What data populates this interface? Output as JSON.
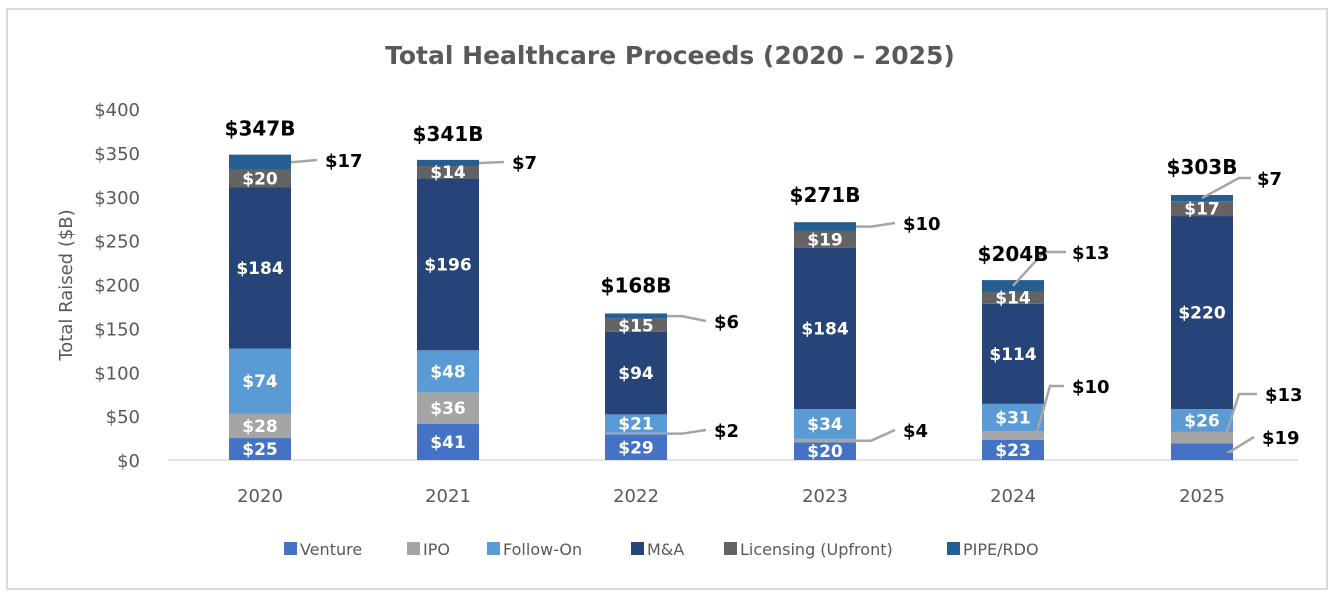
{
  "chart_data": {
    "type": "bar",
    "stacked": true,
    "title": "Total Healthcare Proceeds (2020 – 2025)",
    "xlabel": "",
    "ylabel": "Total Raised ($B)",
    "ylim": [
      0,
      400
    ],
    "yticks": [
      0,
      50,
      100,
      150,
      200,
      250,
      300,
      350,
      400
    ],
    "ytick_labels": [
      "$0",
      "$50",
      "$100",
      "$150",
      "$200",
      "$250",
      "$300",
      "$350",
      "$400"
    ],
    "grid": false,
    "legend_position": "bottom",
    "categories": [
      "2020",
      "2021",
      "2022",
      "2023",
      "2024",
      "2025"
    ],
    "series": [
      {
        "name": "Venture",
        "color": "#4472c4",
        "values": [
          25,
          41,
          29,
          20,
          23,
          19
        ]
      },
      {
        "name": "IPO",
        "color": "#a5a5a5",
        "values": [
          28,
          36,
          2,
          4,
          10,
          13
        ]
      },
      {
        "name": "Follow-On",
        "color": "#5b9bd5",
        "values": [
          74,
          48,
          21,
          34,
          31,
          26
        ]
      },
      {
        "name": "M&A",
        "color": "#264478",
        "values": [
          184,
          196,
          94,
          184,
          114,
          220
        ]
      },
      {
        "name": "Licensing (Upfront)",
        "color": "#636363",
        "values": [
          20,
          14,
          15,
          19,
          14,
          17
        ]
      },
      {
        "name": "PIPE/RDO",
        "color": "#255e91",
        "values": [
          17,
          7,
          6,
          10,
          13,
          7
        ]
      }
    ],
    "totals": [
      347,
      341,
      168,
      271,
      204,
      303
    ],
    "total_labels": [
      "$347B",
      "$341B",
      "$168B",
      "$271B",
      "$204B",
      "$303B"
    ],
    "value_prefix": "$",
    "callouts": [
      {
        "category": "2020",
        "series": "PIPE/RDO",
        "label": "$17"
      },
      {
        "category": "2021",
        "series": "PIPE/RDO",
        "label": "$7"
      },
      {
        "category": "2022",
        "series": "PIPE/RDO",
        "label": "$6"
      },
      {
        "category": "2022",
        "series": "IPO",
        "label": "$2"
      },
      {
        "category": "2023",
        "series": "PIPE/RDO",
        "label": "$10"
      },
      {
        "category": "2023",
        "series": "IPO",
        "label": "$4"
      },
      {
        "category": "2024",
        "series": "PIPE/RDO",
        "label": "$13"
      },
      {
        "category": "2024",
        "series": "IPO",
        "label": "$10"
      },
      {
        "category": "2025",
        "series": "PIPE/RDO",
        "label": "$7"
      },
      {
        "category": "2025",
        "series": "IPO",
        "label": "$13"
      },
      {
        "category": "2025",
        "series": "Venture",
        "label": "$19"
      }
    ]
  }
}
